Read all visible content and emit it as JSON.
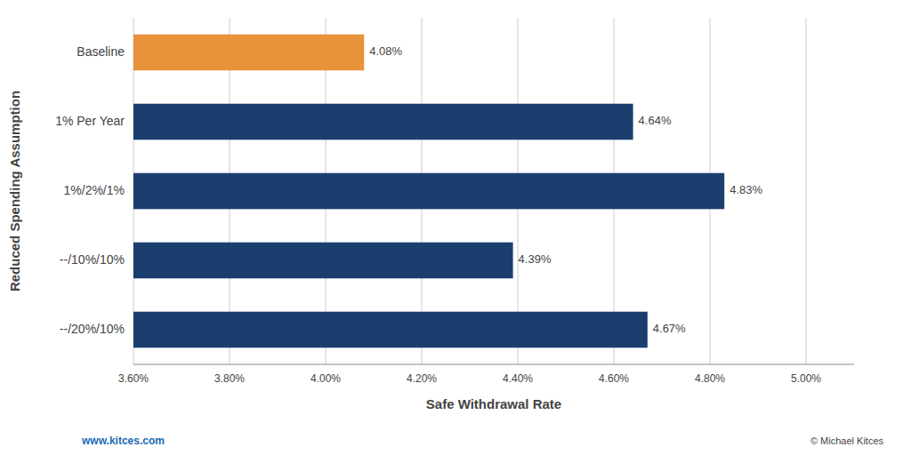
{
  "chart_data": {
    "type": "bar",
    "orientation": "horizontal",
    "categories": [
      "--/20%/10%",
      "--/10%/10%",
      "1%/2%/1%",
      "1% Per Year",
      "Baseline"
    ],
    "values": [
      0.0467,
      0.0439,
      0.0483,
      0.0464,
      0.0408
    ],
    "value_labels": [
      "4.67%",
      "4.39%",
      "4.83%",
      "4.64%",
      "4.08%"
    ],
    "data_labels": true,
    "colors": [
      "#1a3f6f",
      "#1a3f6f",
      "#1a3f6f",
      "#1a3f6f",
      "#e8923a"
    ],
    "x_label": "Safe Withdrawal Rate",
    "y_label": "Reduced Spending Assumption",
    "xlim": [
      0.036,
      0.051
    ],
    "xticks": [
      {
        "value": 0.036,
        "label": "3.60%"
      },
      {
        "value": 0.038,
        "label": "3.80%"
      },
      {
        "value": 0.04,
        "label": "4.00%"
      },
      {
        "value": 0.042,
        "label": "4.20%"
      },
      {
        "value": 0.044,
        "label": "4.40%"
      },
      {
        "value": 0.046,
        "label": "4.60%"
      },
      {
        "value": 0.048,
        "label": "4.80%"
      },
      {
        "value": 0.05,
        "label": "5.00%"
      }
    ],
    "grid": true,
    "annotations": [
      "www.kitces.com",
      "© Michael Kitces"
    ]
  }
}
